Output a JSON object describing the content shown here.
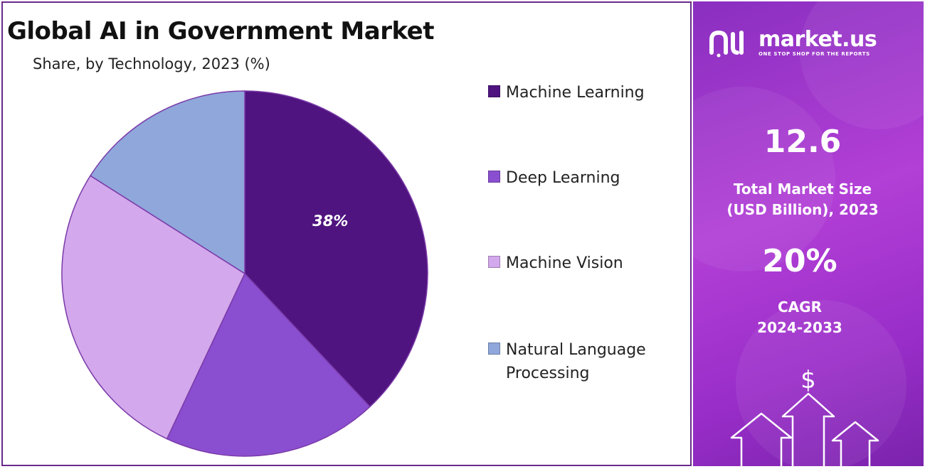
{
  "chart_data": {
    "type": "pie",
    "title": "Global AI in Government Market",
    "subtitle": "Share, by Technology, 2023 (%)",
    "slices": [
      {
        "name": "Machine Learning",
        "value": 38,
        "label": "38%",
        "color": "#4f1480"
      },
      {
        "name": "Deep Learning",
        "value": 19,
        "label": "",
        "color": "#8a4fd0"
      },
      {
        "name": "Machine Vision",
        "value": 27,
        "label": "",
        "color": "#d3a8ec"
      },
      {
        "name": "Natural Language Processing",
        "value": 16,
        "label": "",
        "color": "#8fa7db"
      }
    ],
    "legend_position": "right"
  },
  "legend": [
    {
      "label": "Machine Learning",
      "color": "#4f1480"
    },
    {
      "label": "Deep Learning",
      "color": "#8a4fd0"
    },
    {
      "label": "Machine Vision",
      "color": "#d3a8ec"
    },
    {
      "label": "Natural Language Processing",
      "color": "#8fa7db"
    }
  ],
  "brand": {
    "name": "market.us",
    "tagline": "ONE STOP SHOP FOR THE REPORTS",
    "logo_icon": "market-us-logo"
  },
  "stats": {
    "market_size_value": "12.6",
    "market_size_label_line1": "Total Market Size",
    "market_size_label_line2": "(USD Billion), 2023",
    "cagr_value": "20%",
    "cagr_label_line1": "CAGR",
    "cagr_label_line2": "2024-2033"
  },
  "decor": {
    "icon": "dollar-growth-arrows-icon",
    "symbol": "$"
  },
  "colors": {
    "border": "#6a2a8c",
    "panel_accent": "#a437d0"
  }
}
